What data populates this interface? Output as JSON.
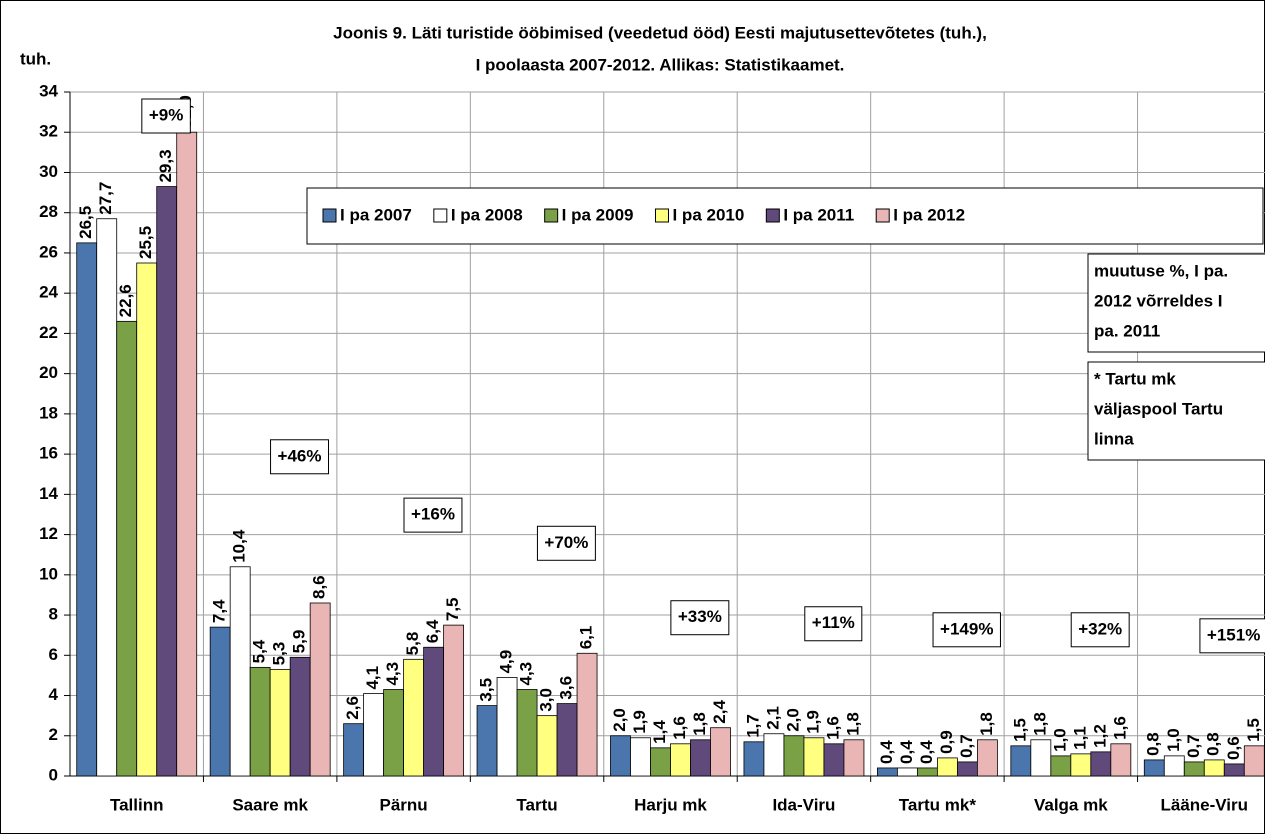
{
  "chart_data": {
    "type": "bar",
    "title": [
      "Joonis 9. Läti turistide ööbimised (veedetud ööd) Eesti majutusettevõtetes (tuh.),",
      "I poolaasta 2007-2012. Allikas: Statistikaamet."
    ],
    "ylabel": "tuh.",
    "categories": [
      "Tallinn",
      "Saare mk",
      "Pärnu",
      "Tartu",
      "Harju mk",
      "Ida-Viru",
      "Tartu mk*",
      "Valga mk",
      "Lääne-Viru"
    ],
    "series": [
      {
        "name": "I pa 2007",
        "color": "#4a76ad",
        "values": [
          26.5,
          7.4,
          2.6,
          3.5,
          2.0,
          1.7,
          0.4,
          1.5,
          0.8
        ],
        "value_labels": [
          "26,5",
          "7,4",
          "2,6",
          "3,5",
          "2,0",
          "1,7",
          "0,4",
          "1,5",
          "0,8"
        ]
      },
      {
        "name": "I pa 2008",
        "color": "#ffffff",
        "values": [
          27.7,
          10.4,
          4.1,
          4.9,
          1.9,
          2.1,
          0.4,
          1.8,
          1.0
        ],
        "value_labels": [
          "27,7",
          "10,4",
          "4,1",
          "4,9",
          "1,9",
          "2,1",
          "0,4",
          "1,8",
          "1,0"
        ]
      },
      {
        "name": "I pa 2009",
        "color": "#7aa146",
        "values": [
          22.6,
          5.4,
          4.3,
          4.3,
          1.4,
          2.0,
          0.4,
          1.0,
          0.7
        ],
        "value_labels": [
          "22,6",
          "5,4",
          "4,3",
          "4,3",
          "1,4",
          "2,0",
          "0,4",
          "1,0",
          "0,7"
        ]
      },
      {
        "name": "I pa 2010",
        "color": "#ffff80",
        "values": [
          25.5,
          5.3,
          5.8,
          3.0,
          1.6,
          1.9,
          0.9,
          1.1,
          0.8
        ],
        "value_labels": [
          "25,5",
          "5,3",
          "5,8",
          "3,0",
          "1,6",
          "1,9",
          "0,9",
          "1,1",
          "0,8"
        ]
      },
      {
        "name": "I pa 2011",
        "color": "#604a7b",
        "values": [
          29.3,
          5.9,
          6.4,
          3.6,
          1.8,
          1.6,
          0.7,
          1.2,
          0.6
        ],
        "value_labels": [
          "29,3",
          "5,9",
          "6,4",
          "3,6",
          "1,8",
          "1,6",
          "0,7",
          "1,2",
          "0,6"
        ]
      },
      {
        "name": "I pa 2012",
        "color": "#eab6b5",
        "values": [
          32.0,
          8.6,
          7.5,
          6.1,
          2.4,
          1.8,
          1.8,
          1.6,
          1.5
        ],
        "value_labels": [
          "32,0",
          "8,6",
          "7,5",
          "6,1",
          "2,4",
          "1,8",
          "1,8",
          "1,6",
          "1,5"
        ]
      }
    ],
    "changes": [
      "+9%",
      "+46%",
      "+16%",
      "+70%",
      "+33%",
      "+11%",
      "+149%",
      "+32%",
      "+151%"
    ],
    "notes": [
      [
        "muutuse %, I pa.",
        "2012 võrreldes I",
        "pa. 2011"
      ],
      [
        "* Tartu mk",
        "väljaspool Tartu",
        "linna"
      ]
    ],
    "ylim": [
      0,
      34
    ],
    "yticks": [
      0,
      2,
      4,
      6,
      8,
      10,
      12,
      14,
      16,
      18,
      20,
      22,
      24,
      26,
      28,
      30,
      32,
      34
    ],
    "grid": true
  }
}
